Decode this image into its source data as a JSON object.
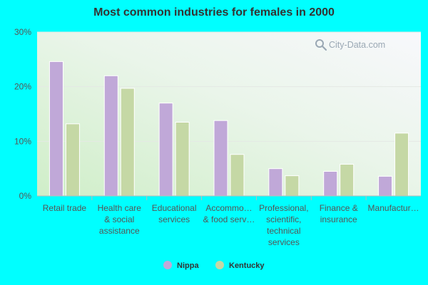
{
  "chart_data": {
    "type": "bar",
    "title": "Most common industries for females in 2000",
    "xlabel": "",
    "ylabel": "",
    "ylim": [
      0,
      30
    ],
    "yticks": [
      0,
      10,
      20,
      30
    ],
    "ytick_labels": [
      "0%",
      "10%",
      "20%",
      "30%"
    ],
    "grid": true,
    "legend_position": "bottom-center",
    "categories": [
      [
        "Retail trade"
      ],
      [
        "Health care",
        "& social",
        "assistance"
      ],
      [
        "Educational",
        "services"
      ],
      [
        "Accommo…",
        "& food serv…"
      ],
      [
        "Professional,",
        "scientific,",
        "technical",
        "services"
      ],
      [
        "Finance &",
        "insurance"
      ],
      [
        "Manufactur…"
      ]
    ],
    "series": [
      {
        "name": "Nippa",
        "color": "#c0a8d8",
        "values": [
          24.6,
          22.0,
          17.0,
          13.8,
          5.0,
          4.5,
          3.6
        ]
      },
      {
        "name": "Kentucky",
        "color": "#c5d8a5",
        "values": [
          13.2,
          19.7,
          13.5,
          7.6,
          3.7,
          5.8,
          11.5
        ]
      }
    ]
  },
  "watermark": {
    "text": "City-Data.com",
    "icon": "magnifier-icon"
  },
  "colors": {
    "background": "#00ffff"
  }
}
